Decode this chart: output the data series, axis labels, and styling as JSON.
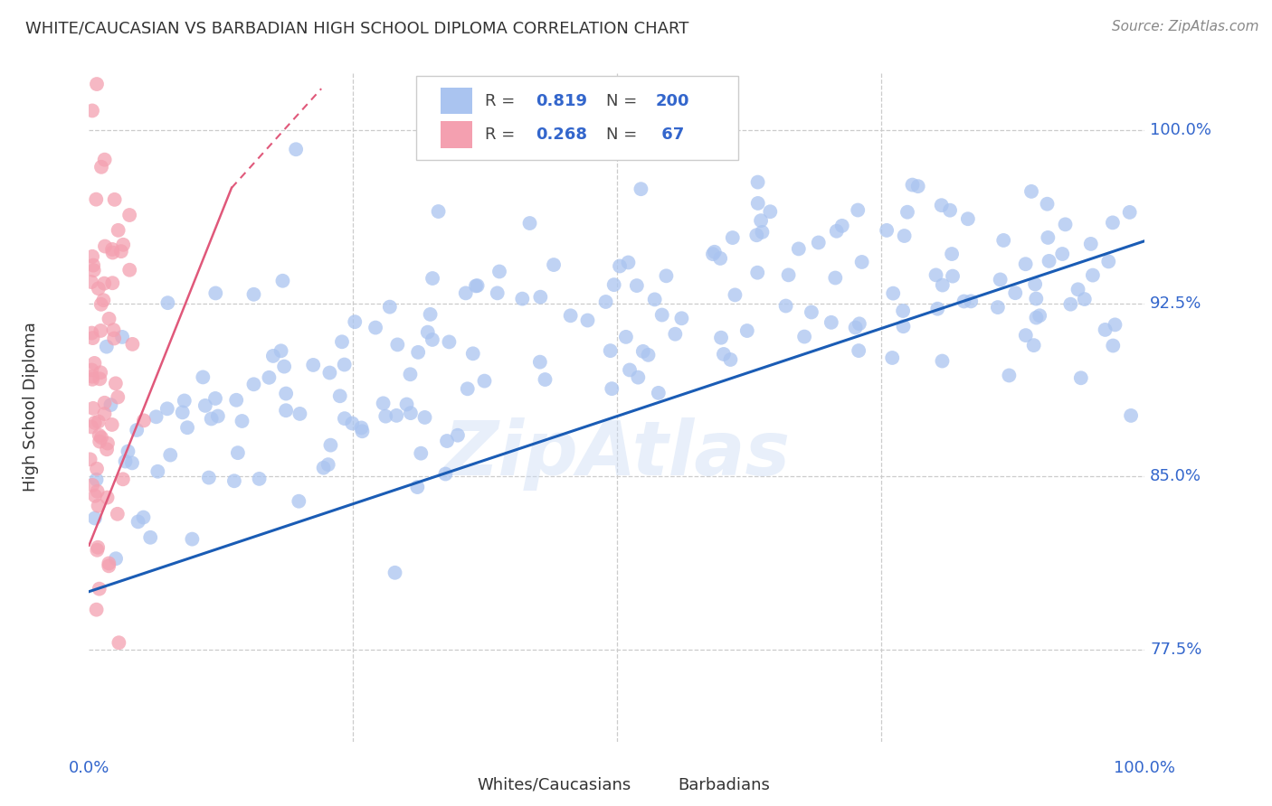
{
  "title": "WHITE/CAUCASIAN VS BARBADIAN HIGH SCHOOL DIPLOMA CORRELATION CHART",
  "source": "Source: ZipAtlas.com",
  "ylabel": "High School Diploma",
  "yticks": [
    0.775,
    0.85,
    0.925,
    1.0
  ],
  "ytick_labels": [
    "77.5%",
    "85.0%",
    "92.5%",
    "100.0%"
  ],
  "blue_R": 0.819,
  "blue_N": 200,
  "pink_R": 0.268,
  "pink_N": 67,
  "blue_color": "#aac4f0",
  "pink_color": "#f4a0b0",
  "blue_line_color": "#1a5cb5",
  "pink_line_color": "#e0587a",
  "watermark": "ZipAtlas",
  "xmin": 0.0,
  "xmax": 1.0,
  "ymin": 0.735,
  "ymax": 1.025,
  "blue_trend_x0": 0.0,
  "blue_trend_y0": 0.8,
  "blue_trend_x1": 1.0,
  "blue_trend_y1": 0.952,
  "pink_trend_x0": 0.0,
  "pink_trend_y0": 0.82,
  "pink_trend_x1": 0.22,
  "pink_trend_y1": 1.02,
  "legend_blue_color": "#aac4f0",
  "legend_pink_color": "#f4a0b0",
  "label_color": "#3366cc",
  "grid_color": "#cccccc",
  "title_color": "#333333",
  "source_color": "#888888"
}
